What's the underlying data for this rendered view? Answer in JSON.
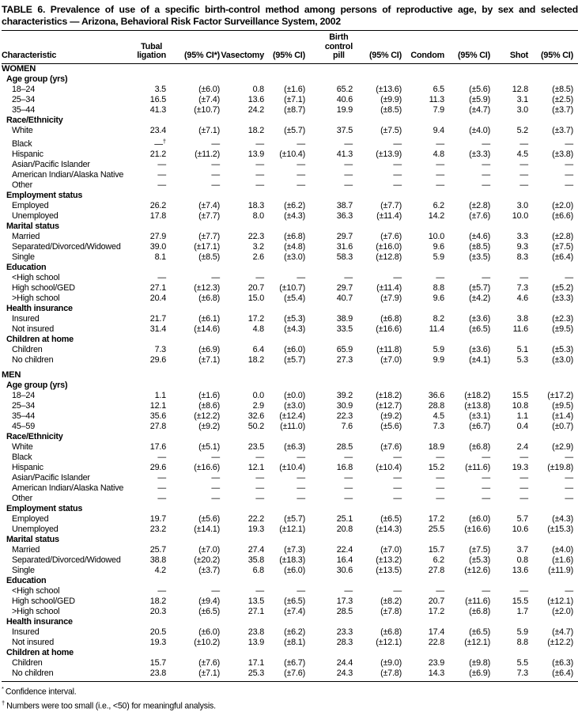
{
  "title": "TABLE 6. Prevalence of use of a specific birth-control method among persons of reproductive age, by sex and selected characteristics — Arizona, Behavioral Risk Factor Surveillance System, 2002",
  "columns": [
    "Characteristic",
    "Tubal\nligation",
    "(95% CI*)",
    "Vasectomy",
    "(95% CI)",
    "Birth\ncontrol\npill",
    "(95% CI)",
    "Condom",
    "(95% CI)",
    "Shot",
    "(95% CI)"
  ],
  "sections": [
    {
      "header": "WOMEN",
      "groups": [
        {
          "label": "Age group (yrs)",
          "rows": [
            {
              "label": "18–24",
              "values": [
                "3.5",
                "(±6.0)",
                "0.8",
                "(±1.6)",
                "65.2",
                "(±13.6)",
                "6.5",
                "(±5.6)",
                "12.8",
                "(±8.5)"
              ]
            },
            {
              "label": "25–34",
              "values": [
                "16.5",
                "(±7.4)",
                "13.6",
                "(±7.1)",
                "40.6",
                "(±9.9)",
                "11.3",
                "(±5.9)",
                "3.1",
                "(±2.5)"
              ]
            },
            {
              "label": "35–44",
              "values": [
                "41.3",
                "(±10.7)",
                "24.2",
                "(±8.7)",
                "19.9",
                "(±8.5)",
                "7.9",
                "(±4.7)",
                "3.0",
                "(±3.7)"
              ]
            }
          ]
        },
        {
          "label": "Race/Ethnicity",
          "rows": [
            {
              "label": "White",
              "values": [
                "23.4",
                "(±7.1)",
                "18.2",
                "(±5.7)",
                "37.5",
                "(±7.5)",
                "9.4",
                "(±4.0)",
                "5.2",
                "(±3.7)"
              ]
            },
            {
              "label": "Black",
              "values": [
                "—†",
                "—",
                "—",
                "—",
                "—",
                "—",
                "—",
                "—",
                "—",
                "—"
              ]
            },
            {
              "label": "Hispanic",
              "values": [
                "21.2",
                "(±11.2)",
                "13.9",
                "(±10.4)",
                "41.3",
                "(±13.9)",
                "4.8",
                "(±3.3)",
                "4.5",
                "(±3.8)"
              ]
            },
            {
              "label": "Asian/Pacific Islander",
              "values": [
                "—",
                "—",
                "—",
                "—",
                "—",
                "—",
                "—",
                "—",
                "—",
                "—"
              ]
            },
            {
              "label": "American Indian/Alaska Native",
              "values": [
                "—",
                "—",
                "—",
                "—",
                "—",
                "—",
                "—",
                "—",
                "—",
                "—"
              ]
            },
            {
              "label": "Other",
              "values": [
                "—",
                "—",
                "—",
                "—",
                "—",
                "—",
                "—",
                "—",
                "—",
                "—"
              ]
            }
          ]
        },
        {
          "label": "Employment status",
          "rows": [
            {
              "label": "Employed",
              "values": [
                "26.2",
                "(±7.4)",
                "18.3",
                "(±6.2)",
                "38.7",
                "(±7.7)",
                "6.2",
                "(±2.8)",
                "3.0",
                "(±2.0)"
              ]
            },
            {
              "label": "Unemployed",
              "values": [
                "17.8",
                "(±7.7)",
                "8.0",
                "(±4.3)",
                "36.3",
                "(±11.4)",
                "14.2",
                "(±7.6)",
                "10.0",
                "(±6.6)"
              ]
            }
          ]
        },
        {
          "label": "Marital status",
          "rows": [
            {
              "label": "Married",
              "values": [
                "27.9",
                "(±7.7)",
                "22.3",
                "(±6.8)",
                "29.7",
                "(±7.6)",
                "10.0",
                "(±4.6)",
                "3.3",
                "(±2.8)"
              ]
            },
            {
              "label": "Separated/Divorced/Widowed",
              "values": [
                "39.0",
                "(±17.1)",
                "3.2",
                "(±4.8)",
                "31.6",
                "(±16.0)",
                "9.6",
                "(±8.5)",
                "9.3",
                "(±7.5)"
              ]
            },
            {
              "label": "Single",
              "values": [
                "8.1",
                "(±8.5)",
                "2.6",
                "(±3.0)",
                "58.3",
                "(±12.8)",
                "5.9",
                "(±3.5)",
                "8.3",
                "(±6.4)"
              ]
            }
          ]
        },
        {
          "label": "Education",
          "rows": [
            {
              "label": "<High school",
              "values": [
                "—",
                "—",
                "—",
                "—",
                "—",
                "—",
                "—",
                "—",
                "—",
                "—"
              ]
            },
            {
              "label": "High school/GED",
              "values": [
                "27.1",
                "(±12.3)",
                "20.7",
                "(±10.7)",
                "29.7",
                "(±11.4)",
                "8.8",
                "(±5.7)",
                "7.3",
                "(±5.2)"
              ]
            },
            {
              "label": ">High school",
              "values": [
                "20.4",
                "(±6.8)",
                "15.0",
                "(±5.4)",
                "40.7",
                "(±7.9)",
                "9.6",
                "(±4.2)",
                "4.6",
                "(±3.3)"
              ]
            }
          ]
        },
        {
          "label": "Health insurance",
          "rows": [
            {
              "label": "Insured",
              "values": [
                "21.7",
                "(±6.1)",
                "17.2",
                "(±5.3)",
                "38.9",
                "(±6.8)",
                "8.2",
                "(±3.6)",
                "3.8",
                "(±2.3)"
              ]
            },
            {
              "label": "Not insured",
              "values": [
                "31.4",
                "(±14.6)",
                "4.8",
                "(±4.3)",
                "33.5",
                "(±16.6)",
                "11.4",
                "(±6.5)",
                "11.6",
                "(±9.5)"
              ]
            }
          ]
        },
        {
          "label": "Children at home",
          "rows": [
            {
              "label": "Children",
              "values": [
                "7.3",
                "(±6.9)",
                "6.4",
                "(±6.0)",
                "65.9",
                "(±11.8)",
                "5.9",
                "(±3.6)",
                "5.1",
                "(±5.3)"
              ]
            },
            {
              "label": "No children",
              "values": [
                "29.6",
                "(±7.1)",
                "18.2",
                "(±5.7)",
                "27.3",
                "(±7.0)",
                "9.9",
                "(±4.1)",
                "5.3",
                "(±3.0)"
              ]
            }
          ]
        }
      ]
    },
    {
      "header": "MEN",
      "groups": [
        {
          "label": "Age group (yrs)",
          "rows": [
            {
              "label": "18–24",
              "values": [
                "1.1",
                "(±1.6)",
                "0.0",
                "(±0.0)",
                "39.2",
                "(±18.2)",
                "36.6",
                "(±18.2)",
                "15.5",
                "(±17.2)"
              ]
            },
            {
              "label": "25–34",
              "values": [
                "12.1",
                "(±8.6)",
                "2.9",
                "(±3.0)",
                "30.9",
                "(±12.7)",
                "28.8",
                "(±13.8)",
                "10.8",
                "(±9.5)"
              ]
            },
            {
              "label": "35–44",
              "values": [
                "35.6",
                "(±12.2)",
                "32.6",
                "(±12.4)",
                "22.3",
                "(±9.2)",
                "4.5",
                "(±3.1)",
                "1.1",
                "(±1.4)"
              ]
            },
            {
              "label": "45–59",
              "values": [
                "27.8",
                "(±9.2)",
                "50.2",
                "(±11.0)",
                "7.6",
                "(±5.6)",
                "7.3",
                "(±6.7)",
                "0.4",
                "(±0.7)"
              ]
            }
          ]
        },
        {
          "label": "Race/Ethnicity",
          "rows": [
            {
              "label": "White",
              "values": [
                "17.6",
                "(±5.1)",
                "23.5",
                "(±6.3)",
                "28.5",
                "(±7.6)",
                "18.9",
                "(±6.8)",
                "2.4",
                "(±2.9)"
              ]
            },
            {
              "label": "Black",
              "values": [
                "—",
                "—",
                "—",
                "—",
                "—",
                "—",
                "—",
                "—",
                "—",
                "—"
              ]
            },
            {
              "label": "Hispanic",
              "values": [
                "29.6",
                "(±16.6)",
                "12.1",
                "(±10.4)",
                "16.8",
                "(±10.4)",
                "15.2",
                "(±11.6)",
                "19.3",
                "(±19.8)"
              ]
            },
            {
              "label": "Asian/Pacific Islander",
              "values": [
                "—",
                "—",
                "—",
                "—",
                "—",
                "—",
                "—",
                "—",
                "—",
                "—"
              ]
            },
            {
              "label": "American Indian/Alaska Native",
              "values": [
                "—",
                "—",
                "—",
                "—",
                "—",
                "—",
                "—",
                "—",
                "—",
                "—"
              ]
            },
            {
              "label": "Other",
              "values": [
                "—",
                "—",
                "—",
                "—",
                "—",
                "—",
                "—",
                "—",
                "—",
                "—"
              ]
            }
          ]
        },
        {
          "label": "Employment status",
          "rows": [
            {
              "label": "Employed",
              "values": [
                "19.7",
                "(±5.6)",
                "22.2",
                "(±5.7)",
                "25.1",
                "(±6.5)",
                "17.2",
                "(±6.0)",
                "5.7",
                "(±4.3)"
              ]
            },
            {
              "label": "Unemployed",
              "values": [
                "23.2",
                "(±14.1)",
                "19.3",
                "(±12.1)",
                "20.8",
                "(±14.3)",
                "25.5",
                "(±16.6)",
                "10.6",
                "(±15.3)"
              ]
            }
          ]
        },
        {
          "label": "Marital status",
          "rows": [
            {
              "label": "Married",
              "values": [
                "25.7",
                "(±7.0)",
                "27.4",
                "(±7.3)",
                "22.4",
                "(±7.0)",
                "15.7",
                "(±7.5)",
                "3.7",
                "(±4.0)"
              ]
            },
            {
              "label": "Separated/Divorced/Widowed",
              "values": [
                "38.8",
                "(±20.2)",
                "35.8",
                "(±18.3)",
                "16.4",
                "(±13.2)",
                "6.2",
                "(±5.3)",
                "0.8",
                "(±1.6)"
              ]
            },
            {
              "label": "Single",
              "values": [
                "4.2",
                "(±3.7)",
                "6.8",
                "(±6.0)",
                "30.6",
                "(±13.5)",
                "27.8",
                "(±12.6)",
                "13.6",
                "(±11.9)"
              ]
            }
          ]
        },
        {
          "label": "Education",
          "rows": [
            {
              "label": "<High school",
              "values": [
                "—",
                "—",
                "—",
                "—",
                "—",
                "—",
                "—",
                "—",
                "—",
                "—"
              ]
            },
            {
              "label": "High school/GED",
              "values": [
                "18.2",
                "(±9.4)",
                "13.5",
                "(±6.5)",
                "17.3",
                "(±8.2)",
                "20.7",
                "(±11.6)",
                "15.5",
                "(±12.1)"
              ]
            },
            {
              "label": ">High school",
              "values": [
                "20.3",
                "(±6.5)",
                "27.1",
                "(±7.4)",
                "28.5",
                "(±7.8)",
                "17.2",
                "(±6.8)",
                "1.7",
                "(±2.0)"
              ]
            }
          ]
        },
        {
          "label": "Health insurance",
          "rows": [
            {
              "label": "Insured",
              "values": [
                "20.5",
                "(±6.0)",
                "23.8",
                "(±6.2)",
                "23.3",
                "(±6.8)",
                "17.4",
                "(±6.5)",
                "5.9",
                "(±4.7)"
              ]
            },
            {
              "label": "Not insured",
              "values": [
                "19.3",
                "(±10.2)",
                "13.9",
                "(±8.1)",
                "28.3",
                "(±12.1)",
                "22.8",
                "(±12.1)",
                "8.8",
                "(±12.2)"
              ]
            }
          ]
        },
        {
          "label": "Children at home",
          "rows": [
            {
              "label": "Children",
              "values": [
                "15.7",
                "(±7.6)",
                "17.1",
                "(±6.7)",
                "24.4",
                "(±9.0)",
                "23.9",
                "(±9.8)",
                "5.5",
                "(±6.3)"
              ]
            },
            {
              "label": "No children",
              "values": [
                "23.8",
                "(±7.1)",
                "25.3",
                "(±7.6)",
                "24.3",
                "(±7.8)",
                "14.3",
                "(±6.9)",
                "7.3",
                "(±6.4)"
              ]
            }
          ]
        }
      ]
    }
  ],
  "footnotes": [
    {
      "marker": "*",
      "text": "Confidence interval."
    },
    {
      "marker": "†",
      "text": "Numbers were too small (i.e., <50) for meaningful analysis."
    }
  ]
}
